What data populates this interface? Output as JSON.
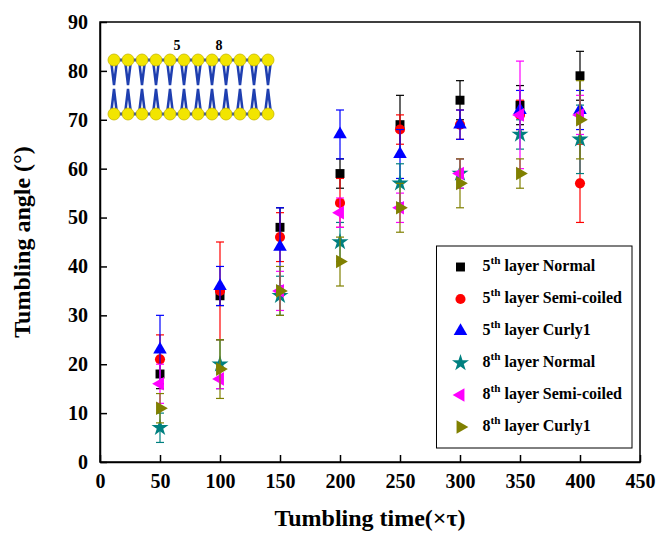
{
  "chart_data": {
    "type": "scatter",
    "x_label": "Tumbling time(×τ)",
    "y_label": "Tumbling angle (°)",
    "annotations": [
      "5",
      "8"
    ],
    "xlim": [
      0,
      450
    ],
    "xticks": [
      0,
      50,
      100,
      150,
      200,
      250,
      300,
      350,
      400,
      450
    ],
    "ylim": [
      0,
      90
    ],
    "yticks": [
      0,
      10,
      20,
      30,
      40,
      50,
      60,
      70,
      80,
      90
    ],
    "grid": false,
    "legend": "lower right",
    "x": [
      50,
      100,
      150,
      200,
      250,
      300,
      350,
      400
    ],
    "series": [
      {
        "name": "5th layer Normal",
        "color": "#000000",
        "marker": "square",
        "values": [
          18,
          34,
          48,
          59,
          69,
          74,
          73,
          79
        ],
        "errors": [
          3,
          2,
          4,
          3,
          6,
          4,
          4,
          5
        ]
      },
      {
        "name": "5th layer Semi-coiled",
        "color": "#ff0000",
        "marker": "circle",
        "values": [
          21,
          35,
          46,
          53,
          68,
          69,
          71,
          57
        ],
        "errors": [
          5,
          10,
          5,
          5,
          3,
          3,
          3,
          8
        ]
      },
      {
        "name": "5th layer Curly1",
        "color": "#0000ff",
        "marker": "triangle-up",
        "values": [
          23,
          36,
          44,
          67,
          63,
          69,
          72,
          72
        ],
        "errors": [
          7,
          4,
          8,
          5,
          5,
          3,
          4,
          4
        ]
      },
      {
        "name": "8th layer Normal",
        "color": "#008080",
        "marker": "star",
        "values": [
          7,
          20,
          34,
          45,
          57,
          59,
          67,
          66
        ],
        "errors": [
          3,
          5,
          4,
          4,
          4,
          3,
          3,
          7
        ]
      },
      {
        "name": "8th layer Semi-coiled",
        "color": "#ff00ff",
        "marker": "triangle-left",
        "values": [
          16,
          17,
          35,
          51,
          52,
          59,
          71,
          71
        ],
        "errors": [
          4,
          2,
          4,
          3,
          3,
          3,
          11,
          4
        ]
      },
      {
        "name": "8th layer Curly1",
        "color": "#808000",
        "marker": "triangle-right",
        "values": [
          11,
          19,
          35,
          41,
          52,
          57,
          59,
          70
        ],
        "errors": [
          3,
          6,
          5,
          5,
          5,
          5,
          3,
          8
        ]
      }
    ]
  }
}
